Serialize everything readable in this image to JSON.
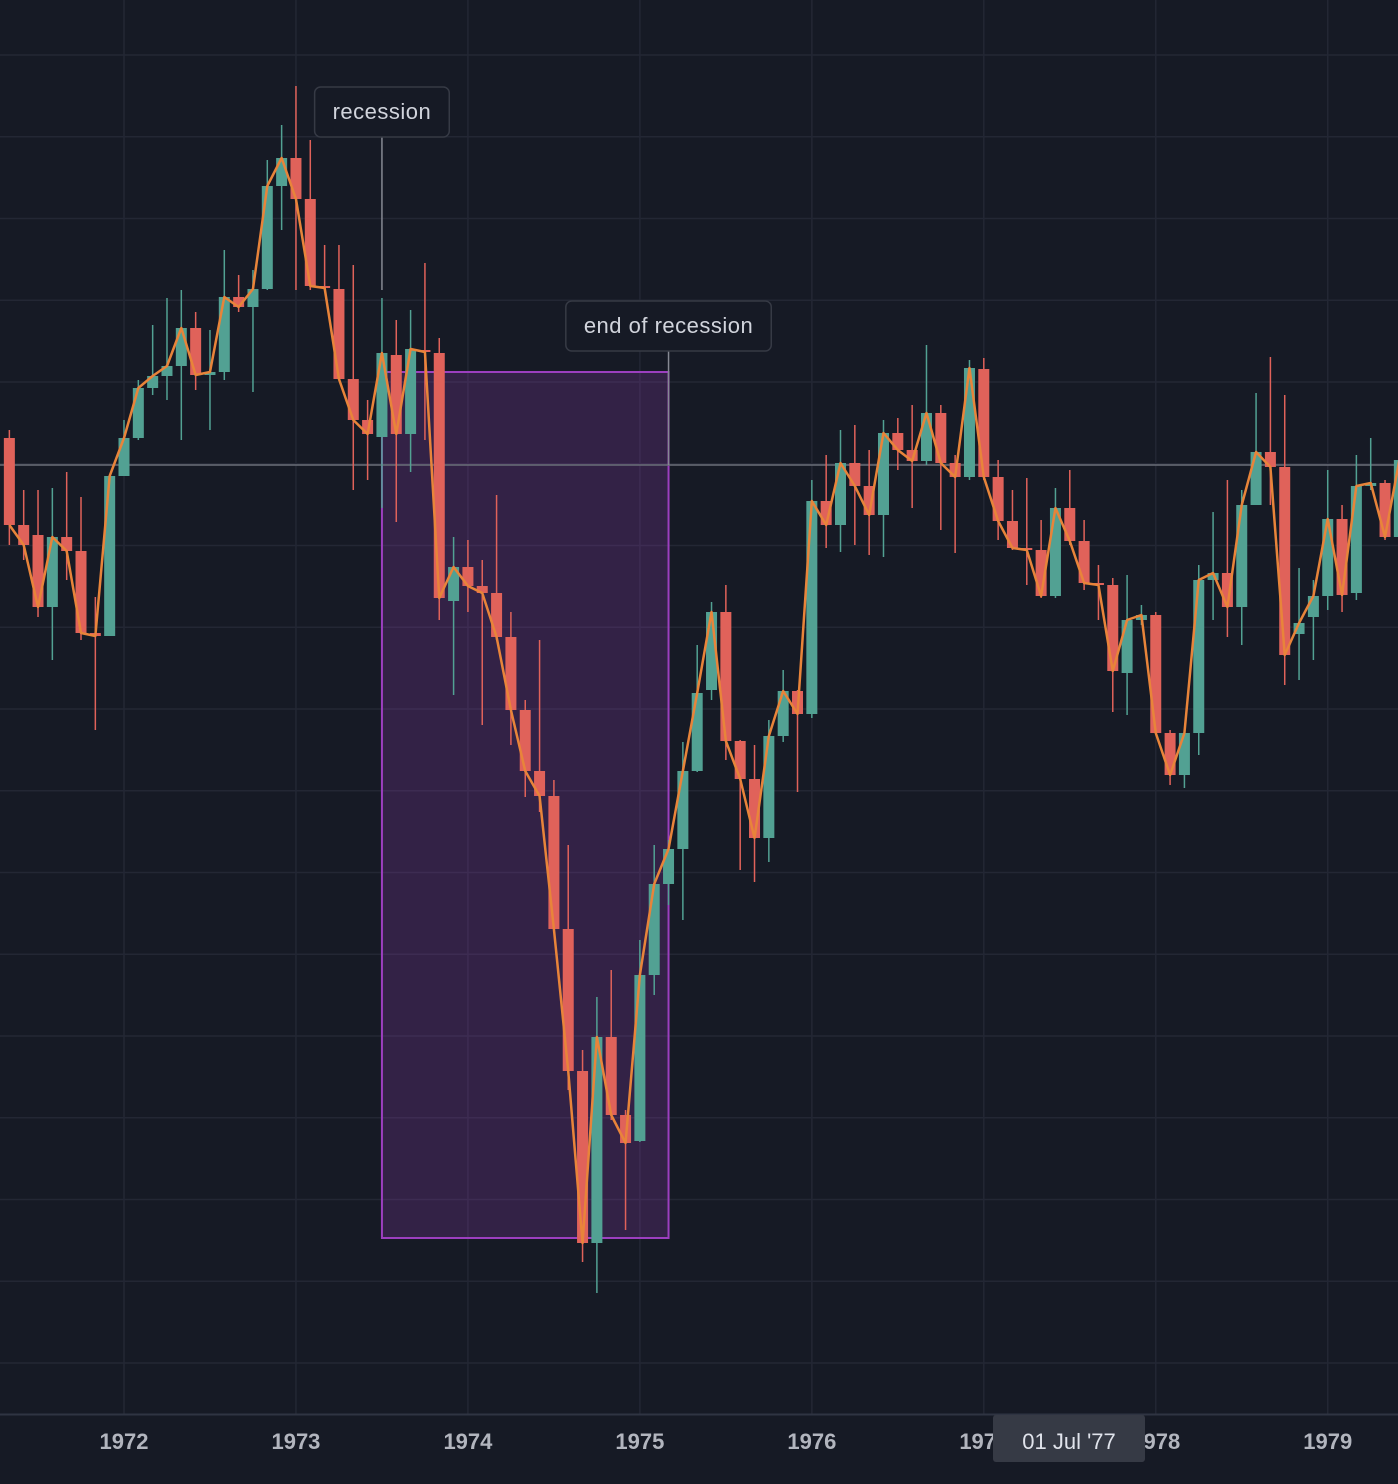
{
  "chart_data": {
    "type": "candlestick",
    "x": [
      "1971-05",
      "1971-06",
      "1971-07",
      "1971-08",
      "1971-09",
      "1971-10",
      "1971-11",
      "1971-12",
      "1972-01",
      "1972-02",
      "1972-03",
      "1972-04",
      "1972-05",
      "1972-06",
      "1972-07",
      "1972-08",
      "1972-09",
      "1972-10",
      "1972-11",
      "1972-12",
      "1973-01",
      "1973-02",
      "1973-03",
      "1973-04",
      "1973-05",
      "1973-06",
      "1973-07",
      "1973-08",
      "1973-09",
      "1973-10",
      "1973-11",
      "1973-12",
      "1974-01",
      "1974-02",
      "1974-03",
      "1974-04",
      "1974-05",
      "1974-06",
      "1974-07",
      "1974-08",
      "1974-09",
      "1974-10",
      "1974-11",
      "1974-12",
      "1975-01",
      "1975-02",
      "1975-03",
      "1975-04",
      "1975-05",
      "1975-06",
      "1975-07",
      "1975-08",
      "1975-09",
      "1975-10",
      "1975-11",
      "1975-12",
      "1976-01",
      "1976-02",
      "1976-03",
      "1976-04",
      "1976-05",
      "1976-06",
      "1976-07",
      "1976-08",
      "1976-09",
      "1976-10",
      "1976-11",
      "1976-12",
      "1977-01",
      "1977-02",
      "1977-03",
      "1977-04",
      "1977-05",
      "1977-06",
      "1977-07",
      "1977-08",
      "1977-09",
      "1977-10",
      "1977-11",
      "1977-12",
      "1978-01",
      "1978-02",
      "1978-03",
      "1978-04",
      "1978-05",
      "1978-06",
      "1978-07",
      "1978-08",
      "1978-09",
      "1978-10",
      "1978-11",
      "1978-12",
      "1979-01",
      "1979-02",
      "1979-03",
      "1979-04",
      "1979-05",
      "1979-06"
    ],
    "open": [
      976,
      889,
      879,
      807,
      877,
      863,
      781,
      778,
      938,
      976,
      1026,
      1038,
      1048,
      1086,
      1039,
      1042,
      1117,
      1107,
      1125,
      1228,
      1256,
      1215,
      1128,
      1125,
      1035,
      994,
      977,
      1059,
      980,
      1064,
      1061,
      813,
      847,
      828,
      821,
      777,
      704,
      643,
      618,
      485,
      343,
      171,
      377,
      299,
      273,
      439,
      530,
      565,
      643,
      724,
      802,
      673,
      635,
      576,
      678,
      723,
      700,
      913,
      889,
      951,
      928,
      899,
      981,
      964,
      953,
      1001,
      951,
      937,
      1045,
      937,
      893,
      866,
      864,
      818,
      906,
      873,
      831,
      829,
      741,
      794,
      799,
      681,
      639,
      681,
      834,
      841,
      807,
      909,
      962,
      947,
      780,
      797,
      818,
      895,
      821,
      928,
      931,
      877
    ],
    "high": [
      984,
      924,
      924,
      926,
      942,
      917,
      817,
      938,
      994,
      1034,
      1089,
      1116,
      1124,
      1102,
      1084,
      1164,
      1139,
      1144,
      1254,
      1289,
      1328,
      1274,
      1169,
      1169,
      1149,
      1014,
      1116,
      1094,
      1104,
      1151,
      1076,
      877,
      874,
      854,
      919,
      802,
      714,
      774,
      634,
      569,
      364,
      417,
      444,
      304,
      474,
      569,
      574,
      672,
      769,
      812,
      829,
      674,
      669,
      694,
      744,
      724,
      934,
      959,
      984,
      989,
      964,
      994,
      996,
      1009,
      1069,
      1009,
      959,
      1054,
      1056,
      954,
      924,
      936,
      894,
      926,
      944,
      894,
      849,
      836,
      839,
      809,
      802,
      684,
      684,
      849,
      902,
      934,
      924,
      1021,
      1057,
      1019,
      846,
      834,
      944,
      909,
      959,
      976,
      934,
      954
    ],
    "low": [
      869,
      854,
      797,
      754,
      834,
      774,
      684,
      778,
      938,
      974,
      1019,
      1014,
      974,
      1024,
      984,
      1034,
      1102,
      1022,
      1124,
      1184,
      1124,
      1124,
      1124,
      1034,
      924,
      934,
      906,
      892,
      942,
      974,
      794,
      719,
      802,
      689,
      774,
      669,
      617,
      602,
      484,
      324,
      152,
      121,
      294,
      184,
      272,
      419,
      509,
      494,
      642,
      714,
      654,
      544,
      532,
      552,
      672,
      622,
      696,
      866,
      862,
      869,
      859,
      857,
      944,
      906,
      949,
      884,
      861,
      934,
      934,
      874,
      864,
      829,
      816,
      816,
      869,
      824,
      794,
      702,
      699,
      789,
      679,
      629,
      626,
      659,
      794,
      777,
      769,
      909,
      909,
      729,
      734,
      754,
      804,
      802,
      814,
      924,
      874,
      874
    ],
    "close": [
      889,
      869,
      807,
      877,
      863,
      781,
      778,
      938,
      976,
      1026,
      1038,
      1048,
      1086,
      1039,
      1042,
      1117,
      1107,
      1125,
      1228,
      1256,
      1215,
      1128,
      1126,
      1035,
      994,
      980,
      1061,
      980,
      1065,
      1062,
      816,
      847,
      828,
      821,
      777,
      704,
      643,
      618,
      485,
      343,
      171,
      377,
      299,
      271,
      439,
      530,
      565,
      643,
      721,
      802,
      673,
      635,
      576,
      678,
      723,
      700,
      913,
      889,
      951,
      928,
      899,
      981,
      964,
      953,
      1001,
      951,
      937,
      1046,
      937,
      893,
      866,
      864,
      818,
      906,
      873,
      831,
      829,
      743,
      794,
      799,
      681,
      639,
      681,
      834,
      841,
      807,
      909,
      962,
      947,
      759,
      791,
      818,
      895,
      819,
      928,
      931,
      877,
      954
    ],
    "up_color": "#52a193",
    "down_color": "#e0625a",
    "line_color": "#e8843a",
    "ylim": [
      0,
      1414
    ],
    "xticks": [
      1972,
      1973,
      1974,
      1975,
      1976,
      1977,
      1978,
      1979
    ],
    "grid": true,
    "annotations": [
      {
        "text": "recession",
        "x": "1973-07"
      },
      {
        "text": "end of recession",
        "x": "1975-03"
      }
    ],
    "shaded_range": {
      "x": [
        "1973-07",
        "1975-03"
      ],
      "y": [
        176,
        1042
      ],
      "color": "#9c3fbf"
    },
    "crosshair": {
      "y": 949,
      "label": "01 Jul '77"
    }
  }
}
